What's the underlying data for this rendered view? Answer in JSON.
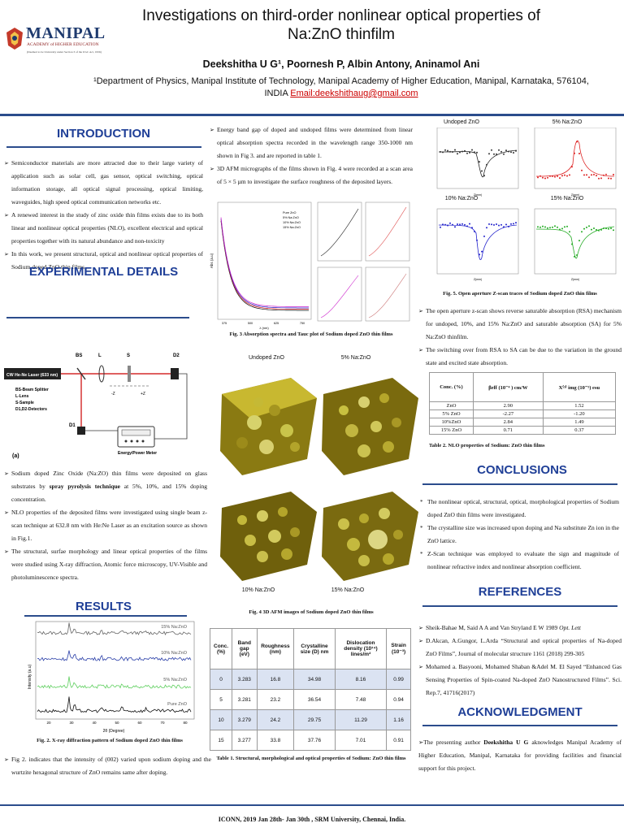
{
  "header": {
    "title": "Investigations on third-order nonlinear optical properties of Na:ZnO thinfilm",
    "authors": "Deekshitha U G¹, Poornesh P, Albin Antony, Aninamol Ani",
    "affiliation": "¹Department of Physics, Manipal Institute of Technology, Manipal Academy of Higher Education, Manipal, Karnataka, 576104, INDIA",
    "email": "Email:deekshithaug@gmail.com"
  },
  "logo": {
    "name": "MANIPAL",
    "sub": "ACADEMY of HIGHER EDUCATION",
    "deemed": "(Deemed to be University under Section 3 of the UGC Act, 1956)"
  },
  "introduction": {
    "heading": "INTRODUCTION",
    "items": [
      "Semiconductor materials are more attracted due to their large variety of application such as solar cell, gas sensor, optical switching, optical information storage, all optical signal processing, optical limiting, waveguides, high speed optical communication networks etc.",
      "A renewed interest in the study of zinc oxide thin films exists due to its both linear and nonlinear optical properties (NLO), excellent electrical and optical properties together with its natural abundance and non-toxicity",
      "In this work, we present structural, optical and nonlinear optical properties of Sodium doped ZnO thin films."
    ]
  },
  "experimental": {
    "heading": "EXPERIMENTAL DETAILS",
    "diagram": {
      "laser": "CW He-Ne Laser (633 nm)",
      "bs": "BS",
      "l": "L",
      "s": "S",
      "d2": "D2",
      "d1": "D1",
      "minus": "-Z",
      "plus": "+Z",
      "legend": [
        "BS-Beam Splitter",
        "L-Lens",
        "S-Sample",
        "D1,D2-Detectors"
      ],
      "meter": "Energy/Power Meter",
      "tag": "(a)"
    },
    "items": [
      "Sodium doped Zinc Oxide (Na:ZO) thin films were deposited on glass substrates by spray pyrolysis technique at 5%, 10%, and 15% doping concentration.",
      "NLO properties of the deposited films were investigated using single beam z-scan technique at 632.8 nm with He:Ne Laser as an excitation source as shown in Fig.1.",
      "The structural, surfae morphology and linear optical properties of the films were studied using X-ray diffraction, Atomic force microscopy, UV-Visible and photoluminescence spectra."
    ]
  },
  "results": {
    "heading": "RESULTS",
    "xrd_labels": [
      "15% Na:ZnO",
      "10% Na:ZnO",
      "5% Na:ZnO",
      "Pure ZnO"
    ],
    "xrd_xlabel": "2θ (Degree)",
    "xrd_ylabel": "Intensity (a.u)",
    "xrd_ticks": [
      "20",
      "30",
      "40",
      "50",
      "60",
      "70",
      "80"
    ],
    "fig2_caption": "Fig. 2. X-ray diffraction pattern of Sodium doped ZnO thin films",
    "item": "Fig 2. indicates that the intensity of (002) varied upon sodium doping and the wurtzite hexagonal structure of ZnO remains same after doping."
  },
  "middle": {
    "items": [
      "Energy band gap of doped and undoped films were determined from linear optical absorption spectra recorded in the wavelength range 350-1000 nm shown in Fig 3. and are reported in table 1.",
      "3D AFM micrographs of the films shown in Fig. 4 were recorded at a scan area of 5 × 5 µm to investigate the surface roughness of the deposited layers."
    ],
    "abs_legend": [
      "Pure ZnO",
      "5% Na:ZnO",
      "10% Na:ZnO",
      "15% Na:ZnO"
    ],
    "abs_xticks": [
      "375",
      "500",
      "625",
      "750"
    ],
    "abs_xlabel": "λ (nm)",
    "abs_ylabel": "Abs (a.u)",
    "fig3_caption": "Fig. 3 Absorption spectra and Tauc plot of Sodium doped ZnO thin films",
    "afm_labels": [
      "Undoped ZnO",
      "5% Na:ZnO",
      "10% Na:ZnO",
      "15% Na:ZnO"
    ],
    "fig4_caption": "Fig. 4 3D AFM images of Sodium doped ZnO thin films",
    "table1": {
      "headers": [
        "Conc. (%)",
        "Band gap (eV)",
        "Roughness (nm)",
        "Crystalline size (D) nm",
        "Dislocation density (10¹⁴) lines/m²",
        "Strain (10⁻³)"
      ],
      "rows": [
        [
          "0",
          "3.283",
          "16.8",
          "34.98",
          "8.16",
          "0.99"
        ],
        [
          "5",
          "3.281",
          "23.2",
          "36.54",
          "7.48",
          "0.94"
        ],
        [
          "10",
          "3.279",
          "24.2",
          "29.75",
          "11.29",
          "1.16"
        ],
        [
          "15",
          "3.277",
          "33.8",
          "37.76",
          "7.01",
          "0.91"
        ]
      ],
      "caption": "Table 1. Structural, morphological and optical properties of Sodium: ZnO thin films"
    }
  },
  "right": {
    "zscan_labels": [
      "Undoped ZnO",
      "5% Na:ZnO",
      "10% Na:ZnO",
      "15% Na:ZnO"
    ],
    "zscan_xlabel": "Z(mm)",
    "fig5_caption": "Fig. 5. Open aperture Z-scan traces of Sodium doped ZnO thin films",
    "items": [
      "The open aperture z-scan shows reverse saturable absorption (RSA) mechanism for undoped, 10%, and 15% Na:ZnO and saturable absorption (SA) for 5% Na:ZnO thinfilm.",
      "The switching over from RSA to SA can be due to the variation in the ground state and excited state absorption."
    ],
    "table2": {
      "headers": [
        "Conc. (%)",
        "βeff (10⁻⁴ ) cm/W",
        "X⁽³⁾ img (10⁻⁵) esu"
      ],
      "rows": [
        [
          "ZnO",
          "2.90",
          "1.52"
        ],
        [
          "5% ZnO",
          "-2.27",
          "-1.20"
        ],
        [
          "10%ZnO",
          "2.84",
          "1.49"
        ],
        [
          "15% ZnO",
          "0.71",
          "0.37"
        ]
      ],
      "caption": "Table 2. NLO properties of Sodium: ZnO thin films"
    },
    "conclusions": {
      "heading": "CONCLUSIONS",
      "items": [
        "The nonlinear optical, structural, optical, morphological properties of Sodium doped ZnO thin films were investigated.",
        "The crystalline size was increased upon doping and Na substitute Zn ion in the ZnO lattice.",
        "Z-Scan technique was employed to evaluate the sign and magnitude of nonlinear refractive index and nonlinear absorption coefficient."
      ]
    },
    "references": {
      "heading": "REFERENCES",
      "items": [
        "Sheik-Bahae M, Said A A and Van Stryland E W 1989 Opt. Lett",
        "D.Akcan, A.Gungor, L.Arda “Structural and optical properties of Na-doped ZnO Films”, Journal of molecular structure 1161 (2018) 299-305",
        "Mohamed a. Basyooni, Mohamed Shaban &Adel M. El Sayed “Enhanced Gas Sensing Properties of Spin-coated Na-doped ZnO Nanostructured Films”. Sci. Rep.7, 41716(2017)"
      ]
    },
    "acknowledgment": {
      "heading": "ACKNOWLEDGMENT",
      "text": "The presenting author Deekshitha U G aknowledges Manipal Academy of Higher Education, Manipal, Karnataka for providing facilities and financial support for this project."
    }
  },
  "footer": "ICONN, 2019 Jan 28th- Jan 30th , SRM University, Chennai, India.",
  "colors": {
    "heading": "#1f3f97",
    "rule": "#2b4c8c",
    "email": "#c00000"
  }
}
